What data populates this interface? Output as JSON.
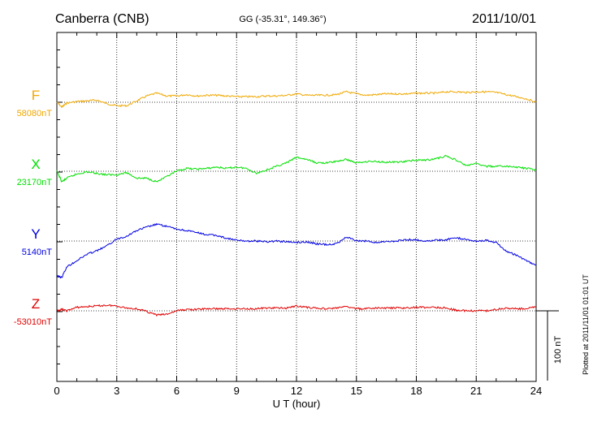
{
  "header": {
    "station": "Canberra (CNB)",
    "coords": "GG (-35.31°, 149.36°)",
    "date": "2011/10/01"
  },
  "footer": {
    "plotted_note": "Plotted at 2011/11/01 01:01 UT"
  },
  "chart_data": {
    "type": "line",
    "xlabel": "U T (hour)",
    "xlim": [
      0,
      24
    ],
    "xticks": [
      "0",
      "3",
      "6",
      "9",
      "12",
      "15",
      "18",
      "21",
      "24"
    ],
    "scale_bar_label": "100 nT",
    "scale_bar_nT": 100,
    "grid": true,
    "series": [
      {
        "name": "F",
        "baseline_label": "58080nT",
        "baseline_nT": 58080,
        "color": "#f0a800",
        "x": [
          0,
          0.25,
          0.5,
          1,
          1.5,
          2,
          2.5,
          3,
          3.5,
          4,
          4.5,
          5,
          5.5,
          6,
          6.5,
          7,
          7.5,
          8,
          8.5,
          9,
          9.5,
          10,
          10.5,
          11,
          11.5,
          12,
          12.5,
          13,
          13.5,
          14,
          14.5,
          15,
          15.5,
          16,
          16.5,
          17,
          17.5,
          18,
          18.5,
          19,
          19.5,
          20,
          20.5,
          21,
          21.5,
          22,
          22.5,
          23,
          23.5,
          24
        ],
        "values": [
          58080,
          58073,
          58079,
          58081,
          58082,
          58083,
          58078,
          58075,
          58075,
          58082,
          58089,
          58093,
          58089,
          58089,
          58091,
          58089,
          58090,
          58090,
          58089,
          58088,
          58088,
          58088,
          58089,
          58089,
          58090,
          58092,
          58090,
          58090,
          58090,
          58091,
          58095,
          58092,
          58090,
          58091,
          58092,
          58092,
          58092,
          58093,
          58093,
          58093,
          58095,
          58095,
          58094,
          58095,
          58095,
          58094,
          58091,
          58088,
          58085,
          58080
        ]
      },
      {
        "name": "X",
        "baseline_label": "23170nT",
        "baseline_nT": 23170,
        "color": "#00e000",
        "x": [
          0,
          0.25,
          0.5,
          1,
          1.5,
          2,
          2.5,
          3,
          3.5,
          4,
          4.5,
          5,
          5.5,
          6,
          6.5,
          7,
          7.5,
          8,
          8.5,
          9,
          9.5,
          10,
          10.5,
          11,
          11.5,
          12,
          12.5,
          13,
          13.5,
          14,
          14.5,
          15,
          15.5,
          16,
          16.5,
          17,
          17.5,
          18,
          18.5,
          19,
          19.5,
          20,
          20.5,
          21,
          21.5,
          22,
          22.5,
          23,
          23.5,
          24
        ],
        "values": [
          23170,
          23155,
          23160,
          23166,
          23169,
          23167,
          23165,
          23165,
          23168,
          23160,
          23160,
          23155,
          23162,
          23170,
          23174,
          23173,
          23174,
          23176,
          23174,
          23176,
          23174,
          23167,
          23172,
          23177,
          23182,
          23190,
          23187,
          23182,
          23182,
          23184,
          23187,
          23182,
          23184,
          23184,
          23183,
          23183,
          23184,
          23186,
          23186,
          23188,
          23192,
          23186,
          23178,
          23181,
          23177,
          23177,
          23177,
          23176,
          23174,
          23172
        ]
      },
      {
        "name": "Y",
        "baseline_label": "5140nT",
        "baseline_nT": 5140,
        "color": "#0000e0",
        "x": [
          0,
          0.25,
          0.5,
          1,
          1.5,
          2,
          2.5,
          3,
          3.5,
          4,
          4.5,
          5,
          5.5,
          6,
          6.5,
          7,
          7.5,
          8,
          8.5,
          9,
          9.5,
          10,
          10.5,
          11,
          11.5,
          12,
          12.5,
          13,
          13.5,
          14,
          14.5,
          15,
          15.5,
          16,
          16.5,
          17,
          17.5,
          18,
          18.5,
          19,
          19.5,
          20,
          20.5,
          21,
          21.5,
          22,
          22.5,
          23,
          23.5,
          24
        ],
        "values": [
          5090,
          5088,
          5103,
          5112,
          5121,
          5126,
          5133,
          5143,
          5147,
          5155,
          5160,
          5164,
          5161,
          5157,
          5155,
          5152,
          5149,
          5148,
          5144,
          5141,
          5140,
          5140,
          5139,
          5140,
          5139,
          5138,
          5139,
          5136,
          5135,
          5136,
          5146,
          5140,
          5140,
          5138,
          5139,
          5140,
          5142,
          5142,
          5140,
          5141,
          5142,
          5145,
          5142,
          5140,
          5141,
          5138,
          5125,
          5120,
          5112,
          5105
        ]
      },
      {
        "name": "Z",
        "baseline_label": "-53010nT",
        "baseline_nT": -53010,
        "color": "#e00000",
        "x": [
          0,
          0.25,
          0.5,
          1,
          1.5,
          2,
          2.5,
          3,
          3.5,
          4,
          4.5,
          5,
          5.5,
          6,
          6.5,
          7,
          7.5,
          8,
          8.5,
          9,
          9.5,
          10,
          10.5,
          11,
          11.5,
          12,
          12.5,
          13,
          13.5,
          14,
          14.5,
          15,
          15.5,
          16,
          16.5,
          17,
          17.5,
          18,
          18.5,
          19,
          19.5,
          20,
          20.5,
          21,
          21.5,
          22,
          22.5,
          23,
          23.5,
          24
        ],
        "values": [
          -53010,
          -53008,
          -53010,
          -53005,
          -53004,
          -53003,
          -53002,
          -53003,
          -53006,
          -53007,
          -53011,
          -53016,
          -53015,
          -53010,
          -53008,
          -53008,
          -53007,
          -53007,
          -53007,
          -53007,
          -53007,
          -53007,
          -53006,
          -53006,
          -53006,
          -53003,
          -53005,
          -53006,
          -53007,
          -53006,
          -53004,
          -53007,
          -53007,
          -53006,
          -53006,
          -53006,
          -53006,
          -53005,
          -53005,
          -53005,
          -53006,
          -53009,
          -53010,
          -53010,
          -53010,
          -53008,
          -53006,
          -53007,
          -53007,
          -53004
        ]
      }
    ]
  }
}
